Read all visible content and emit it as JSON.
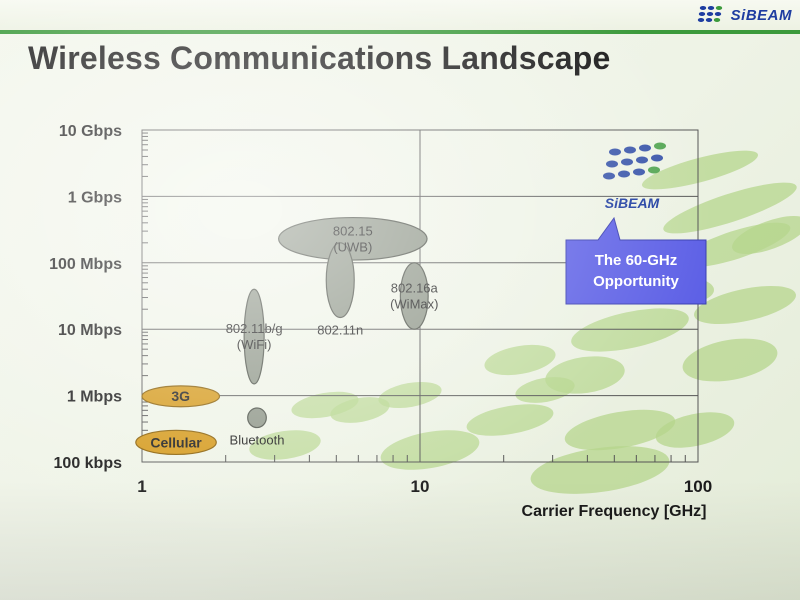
{
  "header": {
    "brand": "SiBEAM"
  },
  "title": "Wireless Communications Landscape",
  "logo_watermark": "SiBEAM",
  "callout": {
    "line1": "The 60-GHz",
    "line2": "Opportunity"
  },
  "colors": {
    "ellipse_gray": "#8e9688",
    "ellipse_orange": "#d59a1c",
    "callout_fill": "#5e61e6",
    "decor_green": "#b6d58c",
    "grid": "#555555",
    "logo_blue": "#1e3da1",
    "accent_green": "#3c9a3c"
  },
  "chart_data": {
    "type": "scatter",
    "title": "Wireless Communications Landscape",
    "xlabel": "Carrier Frequency [GHz]",
    "ylabel": "",
    "xscale": "log",
    "yscale": "log",
    "xlim": [
      1,
      100
    ],
    "ylim_bps": [
      100000,
      10000000000
    ],
    "x_ticks": [
      {
        "value": 1,
        "label": "1"
      },
      {
        "value": 10,
        "label": "10"
      },
      {
        "value": 100,
        "label": "100"
      }
    ],
    "y_ticks": [
      {
        "value": 100000,
        "label": "100 kbps"
      },
      {
        "value": 1000000,
        "label": "1 Mbps"
      },
      {
        "value": 10000000,
        "label": "10 Mbps"
      },
      {
        "value": 100000000,
        "label": "100 Mbps"
      },
      {
        "value": 1000000000,
        "label": "1 Gbps"
      },
      {
        "value": 10000000000,
        "label": "10 Gbps"
      }
    ],
    "grid": true,
    "series": [
      {
        "name": "802.15 (UWB)",
        "label_lines": [
          "802.15",
          "(UWB)"
        ],
        "freq_ghz": [
          3.1,
          10.6
        ],
        "rate_bps": [
          110000000,
          480000000
        ],
        "color": "gray",
        "label_pos": "inside"
      },
      {
        "name": "802.11n",
        "label_lines": [
          "802.11n"
        ],
        "freq_ghz": [
          4.6,
          5.8
        ],
        "rate_bps": [
          15000000,
          200000000
        ],
        "color": "gray",
        "label_pos": "below"
      },
      {
        "name": "802.16a (WiMax)",
        "label_lines": [
          "802.16a",
          "(WiMax)"
        ],
        "freq_ghz": [
          8.5,
          10.7
        ],
        "rate_bps": [
          10000000,
          100000000
        ],
        "color": "gray",
        "label_pos": "inside"
      },
      {
        "name": "802.11b/g (WiFi)",
        "label_lines": [
          "802.11b/g",
          "(WiFi)"
        ],
        "freq_ghz": [
          2.33,
          2.75
        ],
        "rate_bps": [
          1500000,
          40000000
        ],
        "color": "gray",
        "label_pos": "inside"
      },
      {
        "name": "Bluetooth",
        "label_lines": [
          "Bluetooth"
        ],
        "freq_ghz": [
          2.4,
          2.8
        ],
        "rate_bps": [
          330000,
          650000
        ],
        "color": "gray",
        "label_pos": "below"
      },
      {
        "name": "3G",
        "label_lines": [
          "3G"
        ],
        "freq_ghz": [
          1.0,
          1.9
        ],
        "rate_bps": [
          680000,
          1400000
        ],
        "color": "orange",
        "label_pos": "inside"
      },
      {
        "name": "Cellular",
        "label_lines": [
          "Cellular"
        ],
        "freq_ghz": [
          0.95,
          1.85
        ],
        "rate_bps": [
          130000,
          300000
        ],
        "color": "orange",
        "label_pos": "inside"
      }
    ]
  }
}
